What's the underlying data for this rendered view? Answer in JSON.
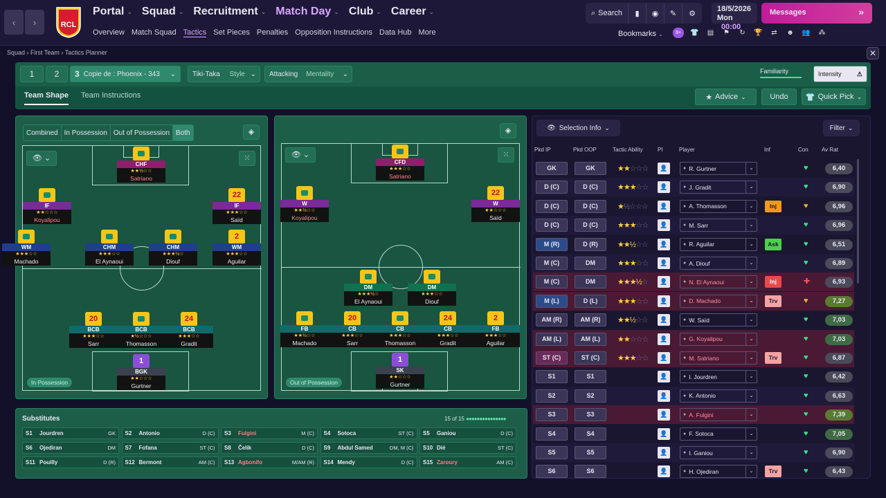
{
  "nav": {
    "main": [
      "Portal",
      "Squad",
      "Recruitment",
      "Match Day",
      "Club",
      "Career"
    ],
    "sub": [
      "Overview",
      "Match Squad",
      "Tactics",
      "Set Pieces",
      "Penalties",
      "Opposition Instructions",
      "Data Hub",
      "More"
    ],
    "search_label": "Search",
    "date": "18/5/2026",
    "day": "Mon",
    "time": "00:00",
    "messages": "Messages",
    "bookmarks": "Bookmarks",
    "badge_count": "9+",
    "club_badge_text": "RCL"
  },
  "breadcrumb": {
    "items": [
      "Squad",
      "First Team",
      "Tactics Planner"
    ]
  },
  "tactic": {
    "slot1": "1",
    "slot2": "2",
    "slot3": "3",
    "name": "Copie de : Phoenix - 343",
    "style_value": "Tiki-Taka",
    "style_label": "Style",
    "mentality_value": "Attacking",
    "mentality_label": "Mentality",
    "familiarity": "Familiarity",
    "intensity": "Intensity",
    "tab_shape": "Team Shape",
    "tab_instructions": "Team Instructions",
    "advice": "Advice",
    "undo": "Undo",
    "quick_pick": "Quick Pick"
  },
  "view_buttons": [
    "Combined",
    "In Possession",
    "Out of Possession",
    "Both"
  ],
  "phase_in": "In Possession",
  "phase_out": "Out of Possession",
  "ip_positions": [
    {
      "role": "CHF",
      "name": "Satriano",
      "num": "",
      "cls": "mag",
      "stars": "★★½☆☆",
      "red": true
    },
    {
      "role": "IF",
      "name": "Koyalipou",
      "num": "",
      "cls": "pur",
      "stars": "★★☆☆☆",
      "red": true
    },
    {
      "role": "IF",
      "name": "Saïd",
      "num": "22",
      "cls": "pur",
      "stars": "★★★☆☆",
      "red": false
    },
    {
      "role": "WM",
      "name": "Machado",
      "num": "",
      "cls": "blu",
      "stars": "★★★☆☆",
      "red": false
    },
    {
      "role": "CHM",
      "name": "El Aynaoui",
      "num": "",
      "cls": "blu",
      "stars": "★★★☆☆",
      "red": false
    },
    {
      "role": "CHM",
      "name": "Diouf",
      "num": "",
      "cls": "blu",
      "stars": "★★★½☆",
      "red": false
    },
    {
      "role": "WM",
      "name": "Aguilar",
      "num": "2",
      "cls": "blu",
      "stars": "★★★☆☆",
      "red": false
    },
    {
      "role": "BCB",
      "name": "Sarr",
      "num": "20",
      "cls": "tea",
      "stars": "★★★☆☆",
      "red": false
    },
    {
      "role": "BCB",
      "name": "Thomasson",
      "num": "",
      "cls": "tea",
      "stars": "★½☆☆☆",
      "red": false
    },
    {
      "role": "BCB",
      "name": "Gradit",
      "num": "24",
      "cls": "tea",
      "stars": "★★★☆☆",
      "red": false
    },
    {
      "role": "BGK",
      "name": "Gurtner",
      "num": "1",
      "cls": "gkb",
      "stars": "★★☆☆☆",
      "red": false
    }
  ],
  "oop_positions": [
    {
      "role": "CFD",
      "name": "Satriano",
      "num": "",
      "cls": "mag",
      "stars": "★★★☆☆",
      "red": true
    },
    {
      "role": "W",
      "name": "Koyalipou",
      "num": "",
      "cls": "pur",
      "stars": "★★½☆☆",
      "red": true
    },
    {
      "role": "W",
      "name": "Saïd",
      "num": "22",
      "cls": "pur",
      "stars": "★★☆☆☆",
      "red": false
    },
    {
      "role": "DM",
      "name": "El Aynaoui",
      "num": "",
      "cls": "grn",
      "stars": "★★★½☆",
      "red": false
    },
    {
      "role": "DM",
      "name": "Diouf",
      "num": "",
      "cls": "grn",
      "stars": "★★★☆☆",
      "red": false
    },
    {
      "role": "FB",
      "name": "Machado",
      "num": "",
      "cls": "tea",
      "stars": "★★½☆☆",
      "red": false
    },
    {
      "role": "CB",
      "name": "Sarr",
      "num": "20",
      "cls": "tea",
      "stars": "★★★☆☆",
      "red": false
    },
    {
      "role": "CB",
      "name": "Thomasson",
      "num": "",
      "cls": "tea",
      "stars": "★★★☆☆",
      "red": false
    },
    {
      "role": "CB",
      "name": "Gradit",
      "num": "24",
      "cls": "tea",
      "stars": "★★★☆☆",
      "red": false
    },
    {
      "role": "FB",
      "name": "Aguilar",
      "num": "2",
      "cls": "tea",
      "stars": "★★★☆☆",
      "red": false
    },
    {
      "role": "SK",
      "name": "Gurtner",
      "num": "1",
      "cls": "gkb",
      "stars": "★★☆☆☆",
      "red": false
    }
  ],
  "subs": {
    "title": "Substitutes",
    "count": "15 of 15",
    "items": [
      {
        "n": "S1",
        "name": "Jourdren",
        "pos": "GK",
        "red": false
      },
      {
        "n": "S2",
        "name": "Antonio",
        "pos": "D (C)",
        "red": false
      },
      {
        "n": "S3",
        "name": "Fulgini",
        "pos": "M (C)",
        "red": true
      },
      {
        "n": "S4",
        "name": "Sotoca",
        "pos": "ST (C)",
        "red": false
      },
      {
        "n": "S5",
        "name": "Ganiou",
        "pos": "D (C)",
        "red": false
      },
      {
        "n": "S6",
        "name": "Ojediran",
        "pos": "DM",
        "red": false
      },
      {
        "n": "S7",
        "name": "Fofana",
        "pos": "ST (C)",
        "red": false
      },
      {
        "n": "S8",
        "name": "Čelik",
        "pos": "D (C)",
        "red": false
      },
      {
        "n": "S9",
        "name": "Abdul Samed",
        "pos": "DM, M (C)",
        "red": false
      },
      {
        "n": "S10",
        "name": "Dié",
        "pos": "ST (C)",
        "red": false
      },
      {
        "n": "S11",
        "name": "Pouilly",
        "pos": "D (R)",
        "red": false
      },
      {
        "n": "S12",
        "name": "Bermont",
        "pos": "AM (C)",
        "red": false
      },
      {
        "n": "S13",
        "name": "Agbonifo",
        "pos": "M/AM (R)",
        "red": true
      },
      {
        "n": "S14",
        "name": "Mendy",
        "pos": "D (C)",
        "red": false
      },
      {
        "n": "S15",
        "name": "Zaroury",
        "pos": "AM (C)",
        "red": true
      }
    ]
  },
  "selection": {
    "info_label": "Selection Info",
    "filter_label": "Filter",
    "headers": [
      "Pkd IP",
      "Pkd OOP",
      "Tactic Ability",
      "PI",
      "Player",
      "Inf",
      "Con",
      "Av Rat"
    ],
    "rows": [
      {
        "ip": "GK",
        "oop": "GK",
        "stars": "★★",
        "empty": "☆☆☆",
        "player": "R. Gurtner",
        "inf": "",
        "infc": "",
        "con": "c",
        "rat": "6,40",
        "ratc": "",
        "rowc": "",
        "pc": ""
      },
      {
        "ip": "D (C)",
        "oop": "D (C)",
        "stars": "★★★",
        "empty": "☆☆",
        "player": "J. Gradit",
        "inf": "",
        "infc": "",
        "con": "c",
        "rat": "6,90",
        "ratc": "",
        "rowc": "alt",
        "pc": ""
      },
      {
        "ip": "D (C)",
        "oop": "D (C)",
        "stars": "★",
        "empty": "½☆☆☆",
        "player": "A. Thomasson",
        "inf": "Inj",
        "infc": "inj",
        "con": "y",
        "rat": "6,96",
        "ratc": "",
        "rowc": "",
        "pc": ""
      },
      {
        "ip": "D (C)",
        "oop": "D (C)",
        "stars": "★★★",
        "empty": "☆☆",
        "player": "M. Sarr",
        "inf": "",
        "infc": "",
        "con": "c",
        "rat": "6,96",
        "ratc": "",
        "rowc": "alt",
        "pc": ""
      },
      {
        "ip": "M (R)",
        "oop": "D (R)",
        "stars": "★★½",
        "empty": "☆☆",
        "player": "R. Aguilar",
        "inf": "Ask",
        "infc": "ask",
        "con": "c",
        "rat": "6,51",
        "ratc": "",
        "rowc": "",
        "pc": "blu"
      },
      {
        "ip": "M (C)",
        "oop": "DM",
        "stars": "★★★",
        "empty": "☆☆",
        "player": "A. Diouf",
        "inf": "",
        "infc": "",
        "con": "c",
        "rat": "6,89",
        "ratc": "",
        "rowc": "alt",
        "pc": ""
      },
      {
        "ip": "M (C)",
        "oop": "DM",
        "stars": "★★★½",
        "empty": "☆",
        "player": "N. El Aynaoui",
        "inf": "Inj",
        "infc": "injr",
        "con": "r",
        "rat": "6,93",
        "ratc": "",
        "rowc": "red",
        "pc": ""
      },
      {
        "ip": "M (L)",
        "oop": "D (L)",
        "stars": "★★★",
        "empty": "☆☆",
        "player": "D. Machado",
        "inf": "Trv",
        "infc": "trv",
        "con": "y",
        "rat": "7,27",
        "ratc": "g",
        "rowc": "red",
        "pc": "blu"
      },
      {
        "ip": "AM (R)",
        "oop": "AM (R)",
        "stars": "★★½",
        "empty": "☆☆",
        "player": "W. Saïd",
        "inf": "",
        "infc": "",
        "con": "c",
        "rat": "7,03",
        "ratc": "g2",
        "rowc": "",
        "pc": ""
      },
      {
        "ip": "AM (L)",
        "oop": "AM (L)",
        "stars": "★★",
        "empty": "☆☆☆",
        "player": "G. Koyalipou",
        "inf": "",
        "infc": "",
        "con": "c",
        "rat": "7,03",
        "ratc": "g2",
        "rowc": "red",
        "pc": ""
      },
      {
        "ip": "ST (C)",
        "oop": "ST (C)",
        "stars": "★★★",
        "empty": "☆☆",
        "player": "M. Satriano",
        "inf": "Trv",
        "infc": "trv",
        "con": "c",
        "rat": "6,87",
        "ratc": "",
        "rowc": "red",
        "pc": "mag"
      },
      {
        "ip": "S1",
        "oop": "S1",
        "stars": "",
        "empty": "",
        "player": "I. Jourdren",
        "inf": "",
        "infc": "",
        "con": "c",
        "rat": "6,42",
        "ratc": "",
        "rowc": "",
        "pc": ""
      },
      {
        "ip": "S2",
        "oop": "S2",
        "stars": "",
        "empty": "",
        "player": "K. Antonio",
        "inf": "",
        "infc": "",
        "con": "c",
        "rat": "6,63",
        "ratc": "",
        "rowc": "alt",
        "pc": ""
      },
      {
        "ip": "S3",
        "oop": "S3",
        "stars": "",
        "empty": "",
        "player": "A. Fulgini",
        "inf": "",
        "infc": "",
        "con": "c",
        "rat": "7,39",
        "ratc": "g",
        "rowc": "red",
        "pc": ""
      },
      {
        "ip": "S4",
        "oop": "S4",
        "stars": "",
        "empty": "",
        "player": "F. Sotoca",
        "inf": "",
        "infc": "",
        "con": "c",
        "rat": "7,05",
        "ratc": "g2",
        "rowc": "",
        "pc": ""
      },
      {
        "ip": "S5",
        "oop": "S5",
        "stars": "",
        "empty": "",
        "player": "I. Ganiou",
        "inf": "",
        "infc": "",
        "con": "c",
        "rat": "6,90",
        "ratc": "",
        "rowc": "alt",
        "pc": ""
      },
      {
        "ip": "S6",
        "oop": "S6",
        "stars": "",
        "empty": "",
        "player": "H. Ojediran",
        "inf": "Trv",
        "infc": "trv",
        "con": "c",
        "rat": "6,43",
        "ratc": "",
        "rowc": "",
        "pc": ""
      }
    ]
  }
}
